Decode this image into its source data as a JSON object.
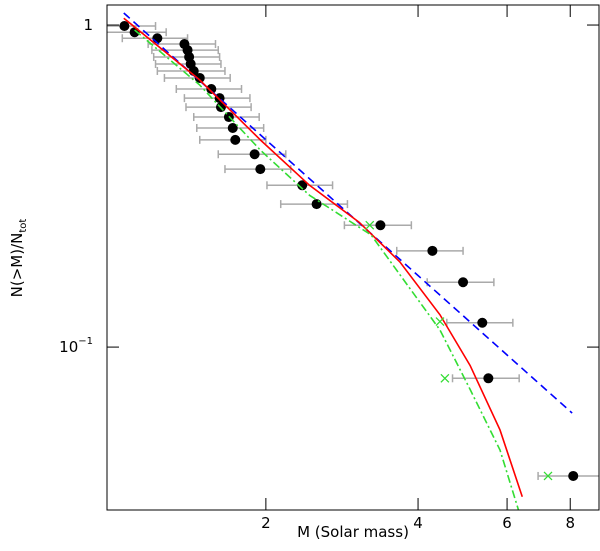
{
  "chart_data": {
    "type": "scatter",
    "xlabel": "M (Solar mass)",
    "ylabel": "N(>M)/N_tot",
    "xscale": "log",
    "yscale": "log",
    "xlim": [
      0.97,
      9.12
    ],
    "ylim": [
      0.0312,
      1.154
    ],
    "xticks": [
      2,
      4,
      6,
      8
    ],
    "yticks": [
      1,
      {
        "value": 0.1,
        "label": "10^-1"
      }
    ],
    "series": [
      {
        "kind": "points",
        "marker": "circle",
        "color": "#000000",
        "errcolor": "#aaaaaa",
        "x": [
          1.05,
          1.1,
          1.22,
          1.38,
          1.4,
          1.41,
          1.42,
          1.44,
          1.48,
          1.56,
          1.62,
          1.63,
          1.69,
          1.72,
          1.74,
          1.9,
          1.95,
          2.36,
          2.52,
          3.37,
          4.27,
          4.91,
          5.36,
          5.51,
          8.11
        ],
        "values": [
          0.993,
          0.95,
          0.91,
          0.873,
          0.836,
          0.796,
          0.757,
          0.72,
          0.685,
          0.633,
          0.593,
          0.556,
          0.518,
          0.479,
          0.44,
          0.397,
          0.357,
          0.318,
          0.278,
          0.239,
          0.199,
          0.159,
          0.119,
          0.08,
          0.0398
        ],
        "xerr": [
          0.16,
          0.17,
          0.18,
          0.21,
          0.21,
          0.21,
          0.21,
          0.22,
          0.22,
          0.23,
          0.24,
          0.24,
          0.25,
          0.26,
          0.26,
          0.29,
          0.29,
          0.35,
          0.38,
          0.51,
          0.64,
          0.74,
          0.8,
          0.83,
          1.2
        ]
      },
      {
        "kind": "line",
        "style": "dashed",
        "color": "#0000ff",
        "x": [
          1.047,
          8.07
        ],
        "values": [
          1.09,
          0.0624
        ]
      },
      {
        "kind": "line",
        "style": "solid",
        "color": "#ff0000",
        "x": [
          1.047,
          1.48,
          1.95,
          2.44,
          3.06,
          3.68,
          4.42,
          5.07,
          5.81,
          6.43
        ],
        "values": [
          1.05,
          0.675,
          0.44,
          0.318,
          0.244,
          0.184,
          0.126,
          0.0877,
          0.0553,
          0.0343
        ]
      },
      {
        "kind": "line",
        "style": "dashdot",
        "color": "#33dd33",
        "x": [
          1.1,
          1.48,
          1.95,
          2.44,
          3.23,
          4.42,
          5.07,
          5.81,
          6.32
        ],
        "values": [
          0.965,
          0.651,
          0.409,
          0.296,
          0.223,
          0.113,
          0.0739,
          0.0479,
          0.0312
        ]
      },
      {
        "kind": "points",
        "marker": "x",
        "color": "#33dd33",
        "x": [
          3.21,
          4.42,
          4.52,
          7.23
        ],
        "values": [
          0.239,
          0.12,
          0.08,
          0.0398
        ]
      }
    ]
  }
}
